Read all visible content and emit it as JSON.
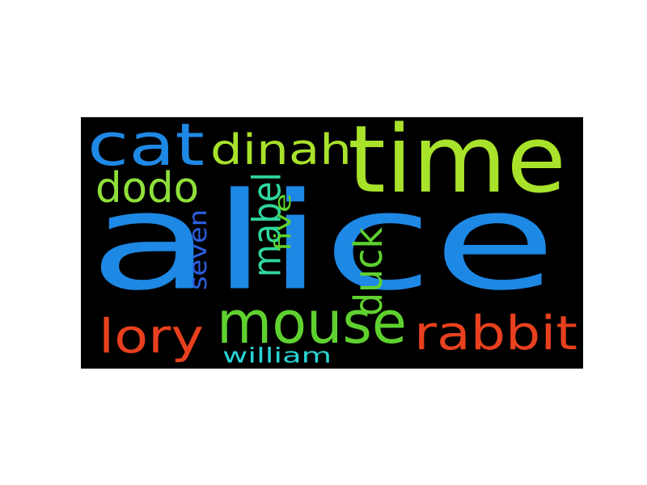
{
  "background_color": "#000000",
  "words": [
    {
      "key": "alice",
      "text": "alice",
      "color": "#1e88e5",
      "orientation": "horizontal"
    },
    {
      "key": "time",
      "text": "time",
      "color": "#a8e22b",
      "orientation": "horizontal"
    },
    {
      "key": "cat",
      "text": "cat",
      "color": "#1e88e5",
      "orientation": "horizontal"
    },
    {
      "key": "dinah",
      "text": "dinah",
      "color": "#a8e22b",
      "orientation": "horizontal"
    },
    {
      "key": "dodo",
      "text": "dodo",
      "color": "#8fe03a",
      "orientation": "horizontal"
    },
    {
      "key": "mouse",
      "text": "mouse",
      "color": "#5fd12f",
      "orientation": "horizontal"
    },
    {
      "key": "rabbit",
      "text": "rabbit",
      "color": "#e8401e",
      "orientation": "horizontal"
    },
    {
      "key": "lory",
      "text": "lory",
      "color": "#e8401e",
      "orientation": "horizontal"
    },
    {
      "key": "duck",
      "text": "duck",
      "color": "#5fd12f",
      "orientation": "vertical"
    },
    {
      "key": "mabel",
      "text": "mabel",
      "color": "#2fd69a",
      "orientation": "vertical"
    },
    {
      "key": "five",
      "text": "five",
      "color": "#5fd12f",
      "orientation": "vertical"
    },
    {
      "key": "seven",
      "text": "seven",
      "color": "#2c5fe0",
      "orientation": "vertical"
    },
    {
      "key": "william",
      "text": "william",
      "color": "#2ad4d4",
      "orientation": "horizontal"
    }
  ]
}
